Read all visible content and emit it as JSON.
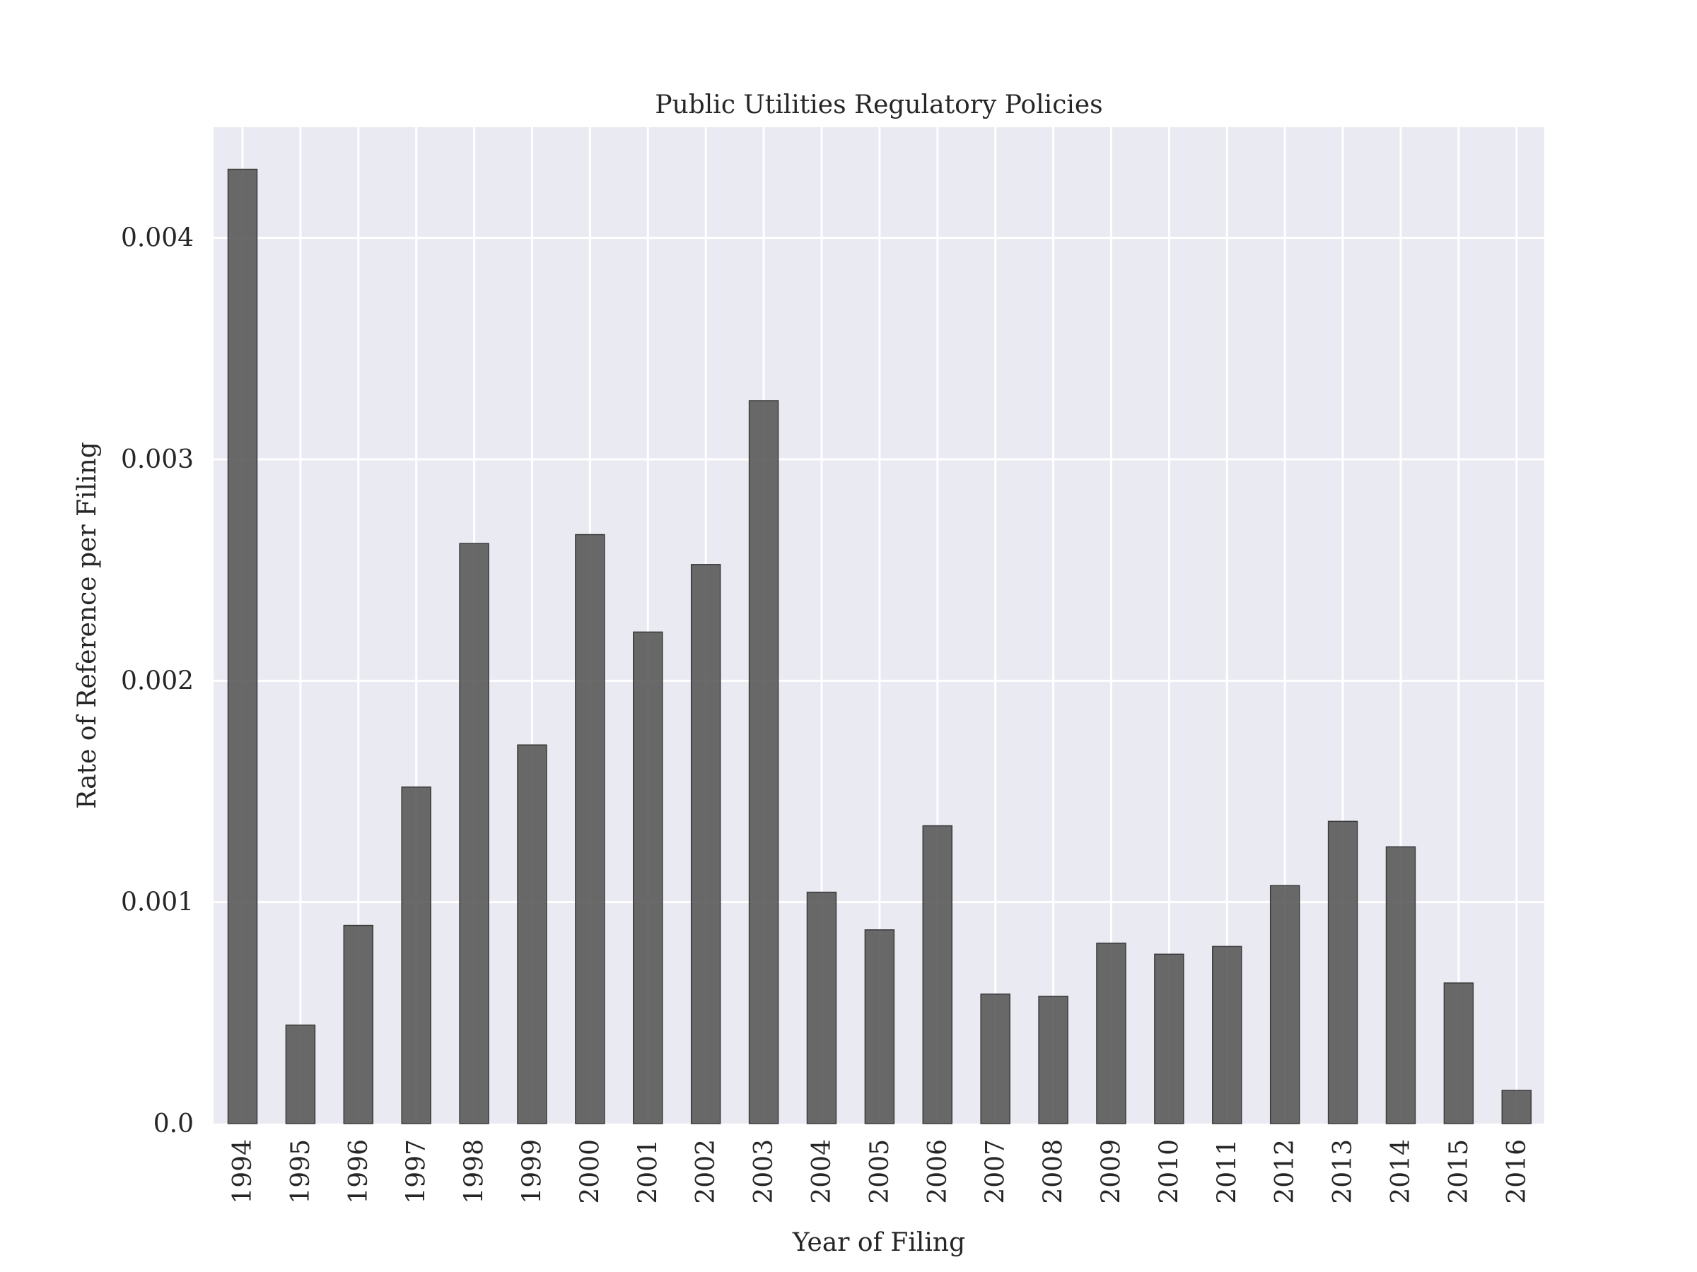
{
  "chart_data": {
    "type": "bar",
    "title": "Public Utilities Regulatory Policies",
    "xlabel": "Year of Filing",
    "ylabel": "Rate of Reference per Filing",
    "categories": [
      "1994",
      "1995",
      "1996",
      "1997",
      "1998",
      "1999",
      "2000",
      "2001",
      "2002",
      "2003",
      "2004",
      "2005",
      "2006",
      "2007",
      "2008",
      "2009",
      "2010",
      "2011",
      "2012",
      "2013",
      "2014",
      "2015",
      "2016"
    ],
    "values": [
      0.00431,
      0.000445,
      0.000895,
      0.00152,
      0.00262,
      0.00171,
      0.00266,
      0.00222,
      0.002525,
      0.003265,
      0.001045,
      0.000875,
      0.001345,
      0.000585,
      0.000575,
      0.000815,
      0.000765,
      0.0008,
      0.001075,
      0.001365,
      0.00125,
      0.000635,
      0.00015
    ],
    "ylim": [
      0,
      0.0045
    ],
    "yticks": [
      "0.0",
      "0.001",
      "0.002",
      "0.003",
      "0.004"
    ],
    "ytick_values": [
      0,
      0.001,
      0.002,
      0.003,
      0.004
    ],
    "grid": true,
    "bar_color": "#555555",
    "plot_background": "#eaeaf2",
    "grid_color": "#ffffff"
  }
}
